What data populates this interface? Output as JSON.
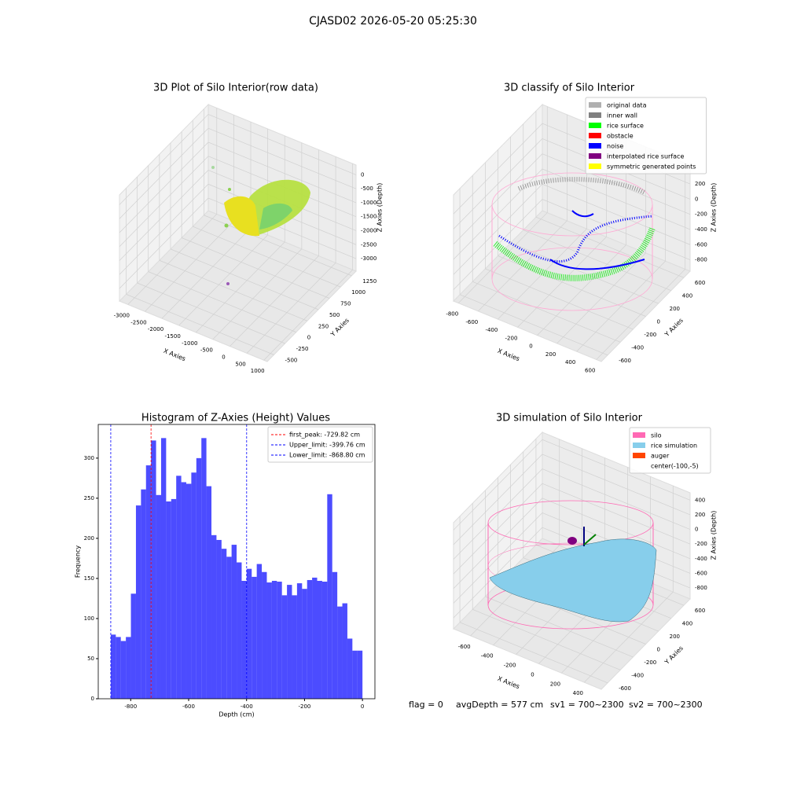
{
  "suptitle": "CJASD02 2026-05-20 05:25:30",
  "footer": [
    "flag = 0",
    "avgDepth = 577 cm",
    "sv1 = 700~2300",
    "sv2 = 700~2300"
  ],
  "chart_data": [
    {
      "type": "scatter3d",
      "title": "3D Plot of Silo Interior(row data)",
      "xlabel": "X Axies",
      "ylabel": "Y Axies",
      "zlabel": "Z Axies (Depth)",
      "xlim": [
        -3250,
        1100
      ],
      "ylim": [
        -650,
        1350
      ],
      "zlim": [
        -3450,
        350
      ],
      "xticks": [
        -3000,
        -2500,
        -2000,
        -1500,
        -1000,
        -500,
        0,
        500,
        1000
      ],
      "yticks": [
        -500,
        -250,
        0,
        250,
        500,
        750,
        1000,
        1250
      ],
      "zticks": [
        0,
        -500,
        -1000,
        -1500,
        -2000,
        -2500,
        -3000
      ]
    },
    {
      "type": "scatter3d",
      "title": "3D classify of Silo Interior",
      "xlabel": "X Axies",
      "ylabel": "Y Axies",
      "zlabel": "Z Axies (Depth)",
      "xlim": [
        -850,
        650
      ],
      "ylim": [
        -700,
        700
      ],
      "zlim": [
        -950,
        450
      ],
      "xticks": [
        -800,
        -600,
        -400,
        -200,
        0,
        200,
        400,
        600
      ],
      "yticks": [
        -600,
        -400,
        -200,
        0,
        200,
        400,
        600
      ],
      "zticks": [
        200,
        0,
        -200,
        -400,
        -600,
        -800
      ],
      "legend": [
        {
          "name": "original data",
          "color": "#b0b0b0"
        },
        {
          "name": "inner wall",
          "color": "#808080"
        },
        {
          "name": "rice surface",
          "color": "#00ff00"
        },
        {
          "name": "obstacle",
          "color": "#ff0000"
        },
        {
          "name": "noise",
          "color": "#0000ff"
        },
        {
          "name": "interpolated rice surface",
          "color": "#800080"
        },
        {
          "name": "symmetric generated points",
          "color": "#ffff00"
        }
      ]
    },
    {
      "type": "histogram",
      "title": "Histogram of Z-Axies (Height) Values",
      "xlabel": "Depth (cm)",
      "ylabel": "Frequency",
      "color": "#0000ff",
      "bins": [
        -868.8,
        -851.4,
        -834.1,
        -816.7,
        -799.3,
        -781.9,
        -764.5,
        -747.2,
        -729.8,
        -712.4,
        -695.0,
        -677.7,
        -660.3,
        -642.9,
        -625.5,
        -608.2,
        -590.8,
        -573.4,
        -556.0,
        -538.7,
        -521.3,
        -503.9,
        -486.5,
        -469.1,
        -451.8,
        -434.4,
        -417.0,
        -399.6,
        -382.3,
        -364.9,
        -347.5,
        -330.1,
        -312.8,
        -295.4,
        -278.0,
        -260.6,
        -243.3,
        -225.9,
        -208.5,
        -191.1,
        -173.8,
        -156.4,
        -139.0,
        -121.6,
        -104.3,
        -86.9,
        -69.5,
        -52.1,
        -34.8,
        -17.4,
        0
      ],
      "values": [
        80,
        77,
        72,
        77,
        131,
        241,
        261,
        291,
        322,
        254,
        325,
        246,
        249,
        278,
        270,
        268,
        282,
        300,
        325,
        265,
        204,
        198,
        187,
        177,
        192,
        170,
        147,
        162,
        152,
        168,
        158,
        145,
        147,
        146,
        129,
        142,
        129,
        144,
        137,
        148,
        151,
        147,
        146,
        255,
        158,
        115,
        119,
        75,
        60,
        60
      ],
      "xlim": [
        -912,
        43
      ],
      "ylim": [
        0,
        342
      ],
      "xticks": [
        -800,
        -600,
        -400,
        -200,
        0
      ],
      "yticks": [
        0,
        50,
        100,
        150,
        200,
        250,
        300
      ],
      "vlines": [
        {
          "label": "first_peak: -729.82 cm",
          "value": -729.82,
          "color": "#ff0000"
        },
        {
          "label": "Upper_limit: -399.76 cm",
          "value": -399.76,
          "color": "#0000ff"
        },
        {
          "label": "Lower_limit: -868.80 cm",
          "value": -868.8,
          "color": "#0000ff"
        }
      ],
      "legend_loc": "upper right"
    },
    {
      "type": "surface3d",
      "title": "3D simulation of Silo Interior",
      "xlabel": "X Axies",
      "ylabel": "Y Axies",
      "zlabel": "Z Axies (Depth)",
      "xlim": [
        -750,
        550
      ],
      "ylim": [
        -700,
        700
      ],
      "zlim": [
        -950,
        500
      ],
      "xticks": [
        -600,
        -400,
        -200,
        0,
        200,
        400
      ],
      "yticks": [
        -600,
        -400,
        -200,
        0,
        200,
        400,
        600
      ],
      "zticks": [
        400,
        200,
        0,
        -200,
        -400,
        -600,
        -800
      ],
      "legend": [
        {
          "name": "silo",
          "color": "#ff69b4"
        },
        {
          "name": "rice simulation",
          "color": "#87ceeb"
        },
        {
          "name": "auger",
          "color": "#ff4500"
        },
        {
          "name": "center(-100,-5)",
          "color": "#ffffff"
        }
      ]
    }
  ]
}
